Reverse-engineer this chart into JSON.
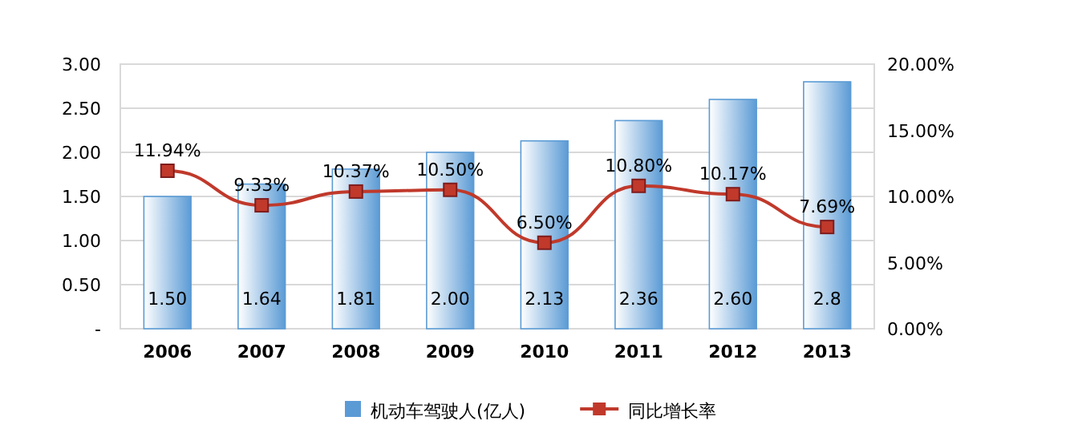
{
  "chart_data": {
    "type": "bar",
    "categories": [
      "2006",
      "2007",
      "2008",
      "2009",
      "2010",
      "2011",
      "2012",
      "2013"
    ],
    "series": [
      {
        "name": "机动车驾驶人(亿人)",
        "color": "#5b9bd5",
        "values": [
          1.5,
          1.64,
          1.81,
          2.0,
          2.13,
          2.36,
          2.6,
          2.8
        ],
        "value_labels": [
          "1.50",
          "1.64",
          "1.81",
          "2.00",
          "2.13",
          "2.36",
          "2.60",
          "2.8"
        ]
      },
      {
        "name": "同比增长率",
        "type": "line",
        "axis": "y2",
        "color": "#c0392b",
        "marker": "square",
        "values": [
          11.94,
          9.33,
          10.37,
          10.5,
          6.5,
          10.8,
          10.17,
          7.69
        ],
        "value_labels": [
          "11.94%",
          "9.33%",
          "10.37%",
          "10.50%",
          "6.50%",
          "10.80%",
          "10.17%",
          "7.69%"
        ]
      }
    ],
    "ylim": [
      0,
      3
    ],
    "yticks": [
      {
        "value": 0,
        "label": "-"
      },
      {
        "value": 0.5,
        "label": "0.50"
      },
      {
        "value": 1,
        "label": "1.00"
      },
      {
        "value": 1.5,
        "label": "1.50"
      },
      {
        "value": 2,
        "label": "2.00"
      },
      {
        "value": 2.5,
        "label": "2.50"
      },
      {
        "value": 3,
        "label": "3.00"
      }
    ],
    "y2lim": [
      0,
      20
    ],
    "y2ticks": [
      {
        "value": 0,
        "label": "0.00%"
      },
      {
        "value": 5,
        "label": "5.00%"
      },
      {
        "value": 10,
        "label": "10.00%"
      },
      {
        "value": 15,
        "label": "15.00%"
      },
      {
        "value": 20,
        "label": "20.00%"
      }
    ],
    "grid": "y",
    "legend": "bottom"
  }
}
